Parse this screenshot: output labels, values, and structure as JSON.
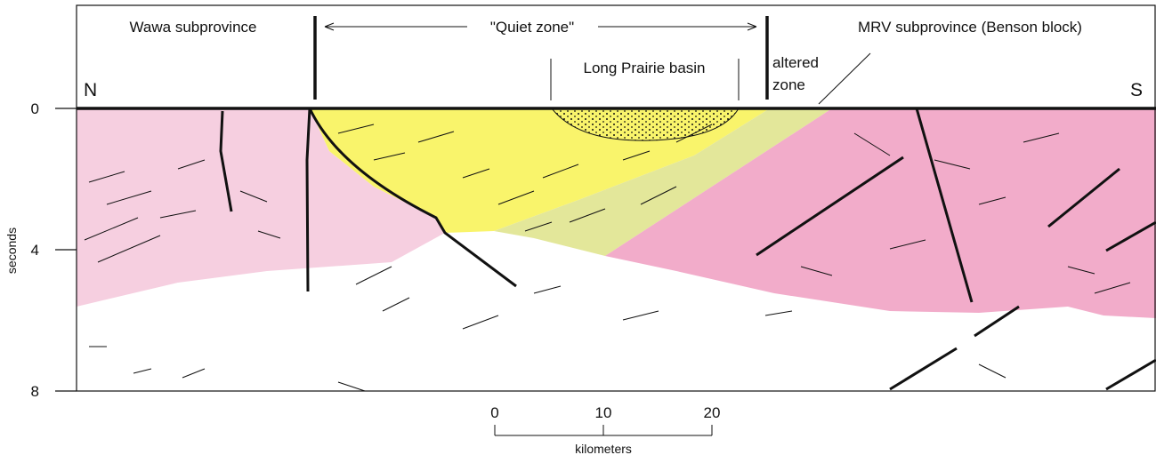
{
  "labels": {
    "wawa": "Wawa subprovince",
    "quiet_zone": "\"Quiet zone\"",
    "basin": "Long Prairie basin",
    "altered_1": "altered",
    "altered_2": "zone",
    "mrv": "MRV subprovince (Benson block)",
    "north": "N",
    "south": "S"
  },
  "y_axis": {
    "label": "seconds",
    "ticks": [
      0,
      4,
      8
    ]
  },
  "scale_bar": {
    "label": "kilometers",
    "ticks": [
      0,
      10,
      20
    ]
  }
}
